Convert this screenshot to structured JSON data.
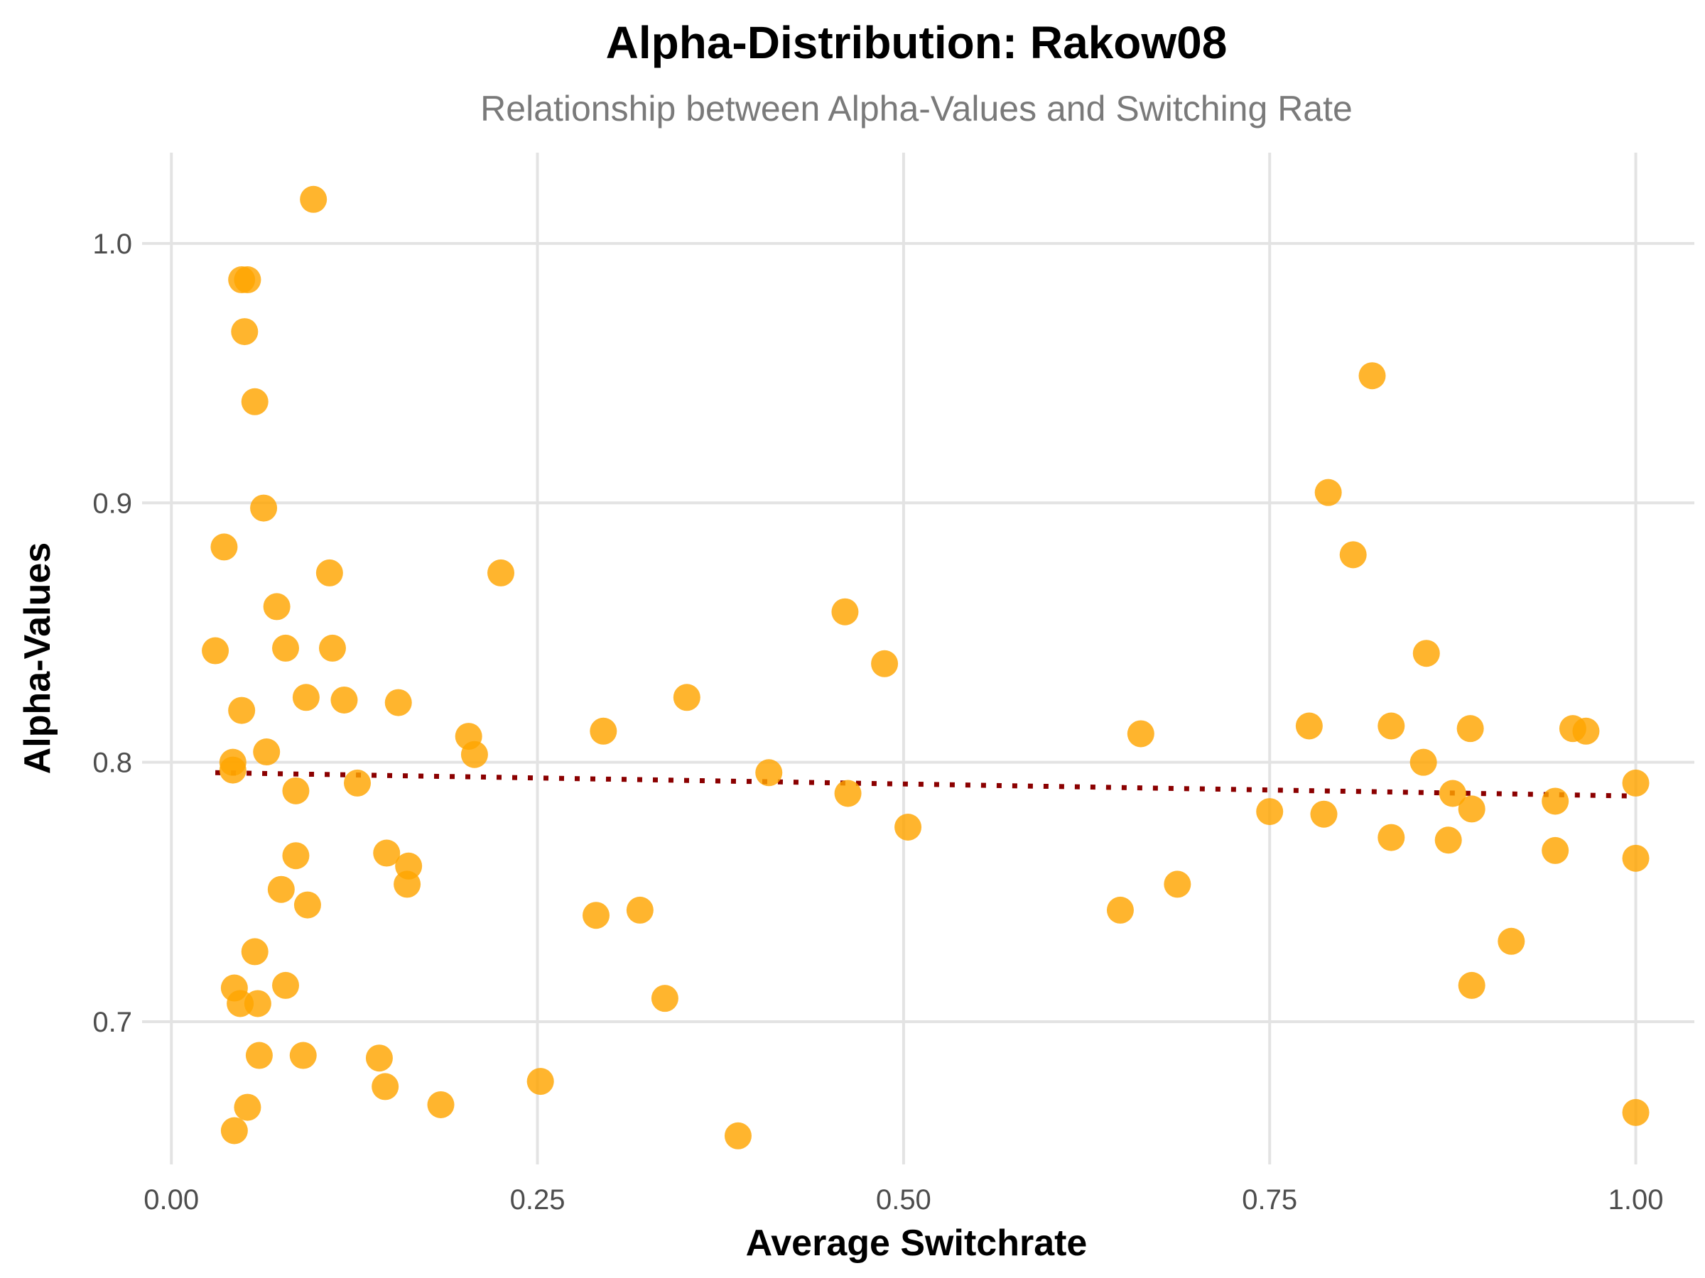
{
  "chart_data": {
    "type": "scatter",
    "title": "Alpha-Distribution: Rakow08",
    "subtitle": "Relationship between Alpha-Values and Switching Rate",
    "xlabel": "Average Switchrate",
    "ylabel": "Alpha-Values",
    "xlim": [
      -0.02,
      1.04
    ],
    "ylim": [
      0.645,
      1.035
    ],
    "x_ticks": [
      0.0,
      0.25,
      0.5,
      0.75,
      1.0
    ],
    "x_tick_labels": [
      "0.00",
      "0.25",
      "0.50",
      "0.75",
      "1.00"
    ],
    "y_ticks": [
      0.7,
      0.8,
      0.9,
      1.0
    ],
    "y_tick_labels": [
      "0.7",
      "0.8",
      "0.9",
      "1.0"
    ],
    "grid": true,
    "legend": "none",
    "colors": {
      "points": "#FFA500",
      "trend": "#8B0000",
      "grid": "#E3E3E3"
    },
    "trend_line": {
      "style": "dotted",
      "x": [
        0.03,
        1.0
      ],
      "y": [
        0.796,
        0.787
      ]
    },
    "points": [
      {
        "x": 0.097,
        "y": 1.017
      },
      {
        "x": 0.048,
        "y": 0.986
      },
      {
        "x": 0.052,
        "y": 0.986
      },
      {
        "x": 0.05,
        "y": 0.966
      },
      {
        "x": 0.057,
        "y": 0.939
      },
      {
        "x": 0.063,
        "y": 0.898
      },
      {
        "x": 0.036,
        "y": 0.883
      },
      {
        "x": 0.108,
        "y": 0.873
      },
      {
        "x": 0.225,
        "y": 0.873
      },
      {
        "x": 0.072,
        "y": 0.86
      },
      {
        "x": 0.078,
        "y": 0.844
      },
      {
        "x": 0.11,
        "y": 0.844
      },
      {
        "x": 0.03,
        "y": 0.843
      },
      {
        "x": 0.092,
        "y": 0.825
      },
      {
        "x": 0.118,
        "y": 0.824
      },
      {
        "x": 0.155,
        "y": 0.823
      },
      {
        "x": 0.048,
        "y": 0.82
      },
      {
        "x": 0.203,
        "y": 0.81
      },
      {
        "x": 0.065,
        "y": 0.804
      },
      {
        "x": 0.207,
        "y": 0.803
      },
      {
        "x": 0.042,
        "y": 0.8
      },
      {
        "x": 0.042,
        "y": 0.797
      },
      {
        "x": 0.127,
        "y": 0.792
      },
      {
        "x": 0.085,
        "y": 0.789
      },
      {
        "x": 0.085,
        "y": 0.764
      },
      {
        "x": 0.147,
        "y": 0.765
      },
      {
        "x": 0.162,
        "y": 0.76
      },
      {
        "x": 0.161,
        "y": 0.753
      },
      {
        "x": 0.075,
        "y": 0.751
      },
      {
        "x": 0.093,
        "y": 0.745
      },
      {
        "x": 0.057,
        "y": 0.727
      },
      {
        "x": 0.078,
        "y": 0.714
      },
      {
        "x": 0.043,
        "y": 0.713
      },
      {
        "x": 0.047,
        "y": 0.707
      },
      {
        "x": 0.059,
        "y": 0.707
      },
      {
        "x": 0.06,
        "y": 0.687
      },
      {
        "x": 0.09,
        "y": 0.687
      },
      {
        "x": 0.142,
        "y": 0.686
      },
      {
        "x": 0.146,
        "y": 0.675
      },
      {
        "x": 0.052,
        "y": 0.667
      },
      {
        "x": 0.184,
        "y": 0.668
      },
      {
        "x": 0.043,
        "y": 0.658
      },
      {
        "x": 0.252,
        "y": 0.677
      },
      {
        "x": 0.295,
        "y": 0.812
      },
      {
        "x": 0.29,
        "y": 0.741
      },
      {
        "x": 0.32,
        "y": 0.743
      },
      {
        "x": 0.337,
        "y": 0.709
      },
      {
        "x": 0.352,
        "y": 0.825
      },
      {
        "x": 0.387,
        "y": 0.656
      },
      {
        "x": 0.408,
        "y": 0.796
      },
      {
        "x": 0.46,
        "y": 0.858
      },
      {
        "x": 0.462,
        "y": 0.788
      },
      {
        "x": 0.487,
        "y": 0.838
      },
      {
        "x": 0.503,
        "y": 0.775
      },
      {
        "x": 0.648,
        "y": 0.743
      },
      {
        "x": 0.662,
        "y": 0.811
      },
      {
        "x": 0.687,
        "y": 0.753
      },
      {
        "x": 0.75,
        "y": 0.781
      },
      {
        "x": 0.777,
        "y": 0.814
      },
      {
        "x": 0.787,
        "y": 0.78
      },
      {
        "x": 0.79,
        "y": 0.904
      },
      {
        "x": 0.807,
        "y": 0.88
      },
      {
        "x": 0.82,
        "y": 0.949
      },
      {
        "x": 0.833,
        "y": 0.814
      },
      {
        "x": 0.833,
        "y": 0.771
      },
      {
        "x": 0.855,
        "y": 0.8
      },
      {
        "x": 0.857,
        "y": 0.842
      },
      {
        "x": 0.872,
        "y": 0.77
      },
      {
        "x": 0.875,
        "y": 0.788
      },
      {
        "x": 0.887,
        "y": 0.813
      },
      {
        "x": 0.888,
        "y": 0.782
      },
      {
        "x": 0.888,
        "y": 0.714
      },
      {
        "x": 0.915,
        "y": 0.731
      },
      {
        "x": 0.945,
        "y": 0.785
      },
      {
        "x": 0.945,
        "y": 0.766
      },
      {
        "x": 0.957,
        "y": 0.813
      },
      {
        "x": 0.966,
        "y": 0.812
      },
      {
        "x": 1.0,
        "y": 0.792
      },
      {
        "x": 1.0,
        "y": 0.763
      },
      {
        "x": 1.0,
        "y": 0.665
      }
    ]
  }
}
